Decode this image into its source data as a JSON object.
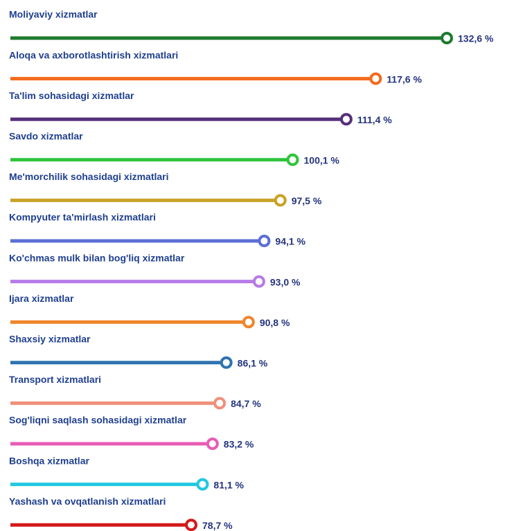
{
  "chart_data": {
    "type": "lollipop",
    "categories": [
      "Moliyaviy xizmatlar",
      "Aloqa va axborotlashtirish xizmatlari",
      "Ta'lim sohasidagi xizmatlar",
      "Savdo xizmatlar",
      "Me'morchilik sohasidagi xizmatlari",
      "Kompyuter ta'mirlash xizmatlari",
      "Ko'chmas mulk bilan bog'liq xizmatlar",
      "Ijara xizmatlar",
      "Shaxsiy xizmatlar",
      "Transport xizmatlari",
      "Sog'liqni saqlash sohasidagi xizmatlar",
      "Boshqa xizmatlar",
      "Yashash va ovqatlanish xizmatlari"
    ],
    "values": [
      132.6,
      117.6,
      111.4,
      100.1,
      97.5,
      94.1,
      93.0,
      90.8,
      86.1,
      84.7,
      83.2,
      81.1,
      78.7
    ],
    "value_labels": [
      "132,6 %",
      "117,6 %",
      "111,4 %",
      "100,1 %",
      "97,5 %",
      "94,1 %",
      "93,0 %",
      "90,8 %",
      "86,1 %",
      "84,7 %",
      "83,2 %",
      "81,1 %",
      "78,7 %"
    ],
    "colors": [
      "#1e7a2e",
      "#f26b1d",
      "#55307a",
      "#2ec43c",
      "#c9a227",
      "#5b6fd6",
      "#b77be8",
      "#f0852a",
      "#2e73b0",
      "#f0907a",
      "#e85cb5",
      "#22c8e0",
      "#d41a1a"
    ]
  }
}
